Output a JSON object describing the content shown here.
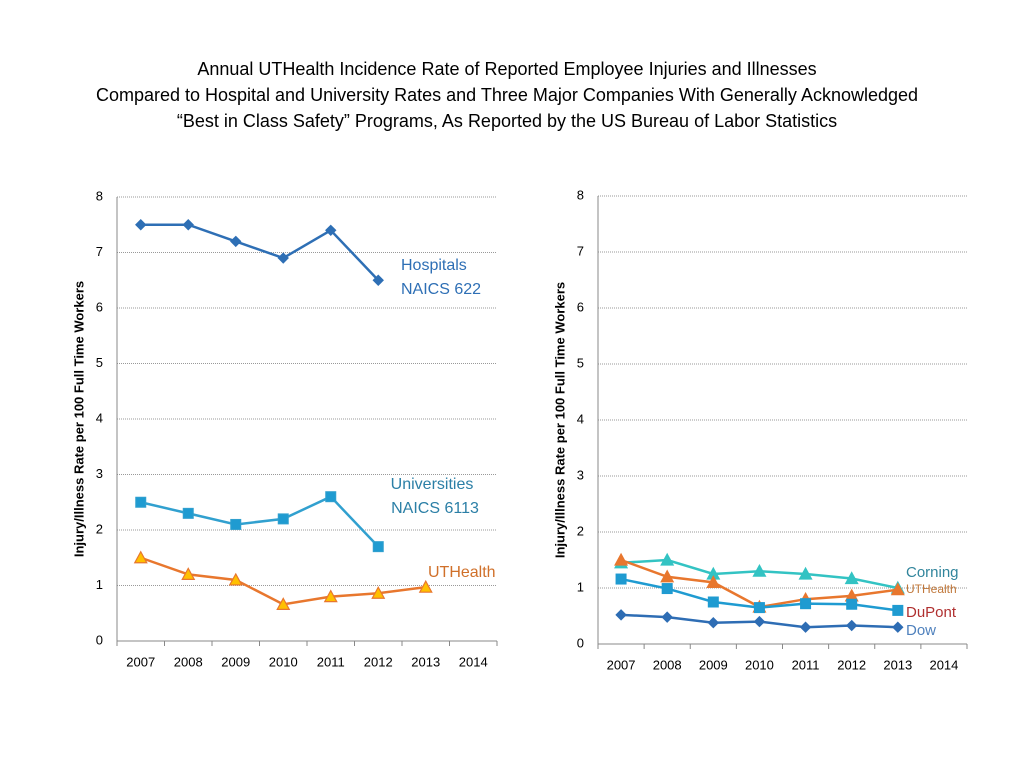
{
  "title_lines": [
    "Annual UTHealth Incidence Rate of Reported Employee Injuries and Illnesses",
    "Compared to Hospital and University Rates and Three Major Companies With Generally Acknowledged",
    "“Best in Class Safety” Programs, As Reported by the US Bureau of Labor Statistics"
  ],
  "chart_data": [
    {
      "type": "line",
      "y_label": "Injury/Illness Rate per 100 Full Time Workers",
      "categories": [
        "2007",
        "2008",
        "2009",
        "2010",
        "2011",
        "2012",
        "2013",
        "2014"
      ],
      "ylim": [
        0,
        8
      ],
      "yticks": [
        0,
        1,
        2,
        3,
        4,
        5,
        6,
        7,
        8
      ],
      "grid": true,
      "series": [
        {
          "name": "Hospitals",
          "code": "NAICS 622",
          "color": "#2e6fb5",
          "label_color": "#2e6fb5",
          "marker": "diamond",
          "marker_fill": "#2e6fb5",
          "values": [
            7.5,
            7.5,
            7.2,
            6.9,
            7.4,
            6.5,
            null,
            null
          ]
        },
        {
          "name": "Universities",
          "code": "NAICS 6113",
          "color": "#31a0cf",
          "label_color": "#2b7fa6",
          "marker": "square",
          "marker_fill": "#1f9bd1",
          "values": [
            2.5,
            2.3,
            2.1,
            2.2,
            2.6,
            1.7,
            null,
            null
          ]
        },
        {
          "name": "UTHealth",
          "color": "#e8772e",
          "label_color": "#d0702a",
          "marker": "triangle",
          "marker_fill": "#ffc000",
          "values": [
            1.5,
            1.2,
            1.1,
            0.66,
            0.8,
            0.86,
            0.97,
            null
          ]
        }
      ]
    },
    {
      "type": "line",
      "y_label": "Injury/Illness Rate per 100 Full Time Workers",
      "categories": [
        "2007",
        "2008",
        "2009",
        "2010",
        "2011",
        "2012",
        "2013",
        "2014"
      ],
      "ylim": [
        0,
        8
      ],
      "yticks": [
        0,
        1,
        2,
        3,
        4,
        5,
        6,
        7,
        8
      ],
      "grid": true,
      "series": [
        {
          "name": "Corning",
          "color": "#33c3c3",
          "label_color": "#31859c",
          "marker": "triangle",
          "marker_fill": "#33c3c3",
          "values": [
            1.45,
            1.5,
            1.25,
            1.3,
            1.25,
            1.17,
            1.0,
            null
          ]
        },
        {
          "name": "UTHealth",
          "color": "#e8772e",
          "label_color": "#c0773a",
          "marker": "triangle",
          "marker_fill": "#e8772e",
          "values": [
            1.5,
            1.2,
            1.1,
            0.66,
            0.8,
            0.86,
            0.97,
            null
          ]
        },
        {
          "name": "DuPont",
          "color": "#1f9bd1",
          "label_color": "#b03030",
          "marker": "square",
          "marker_fill": "#1f9bd1",
          "values": [
            1.16,
            0.99,
            0.75,
            0.65,
            0.72,
            0.71,
            0.6,
            null
          ]
        },
        {
          "name": "Dow",
          "color": "#2e6db4",
          "label_color": "#4f81bd",
          "marker": "diamond",
          "marker_fill": "#2e6db4",
          "values": [
            0.52,
            0.48,
            0.38,
            0.4,
            0.3,
            0.33,
            0.3,
            null
          ]
        }
      ]
    }
  ]
}
